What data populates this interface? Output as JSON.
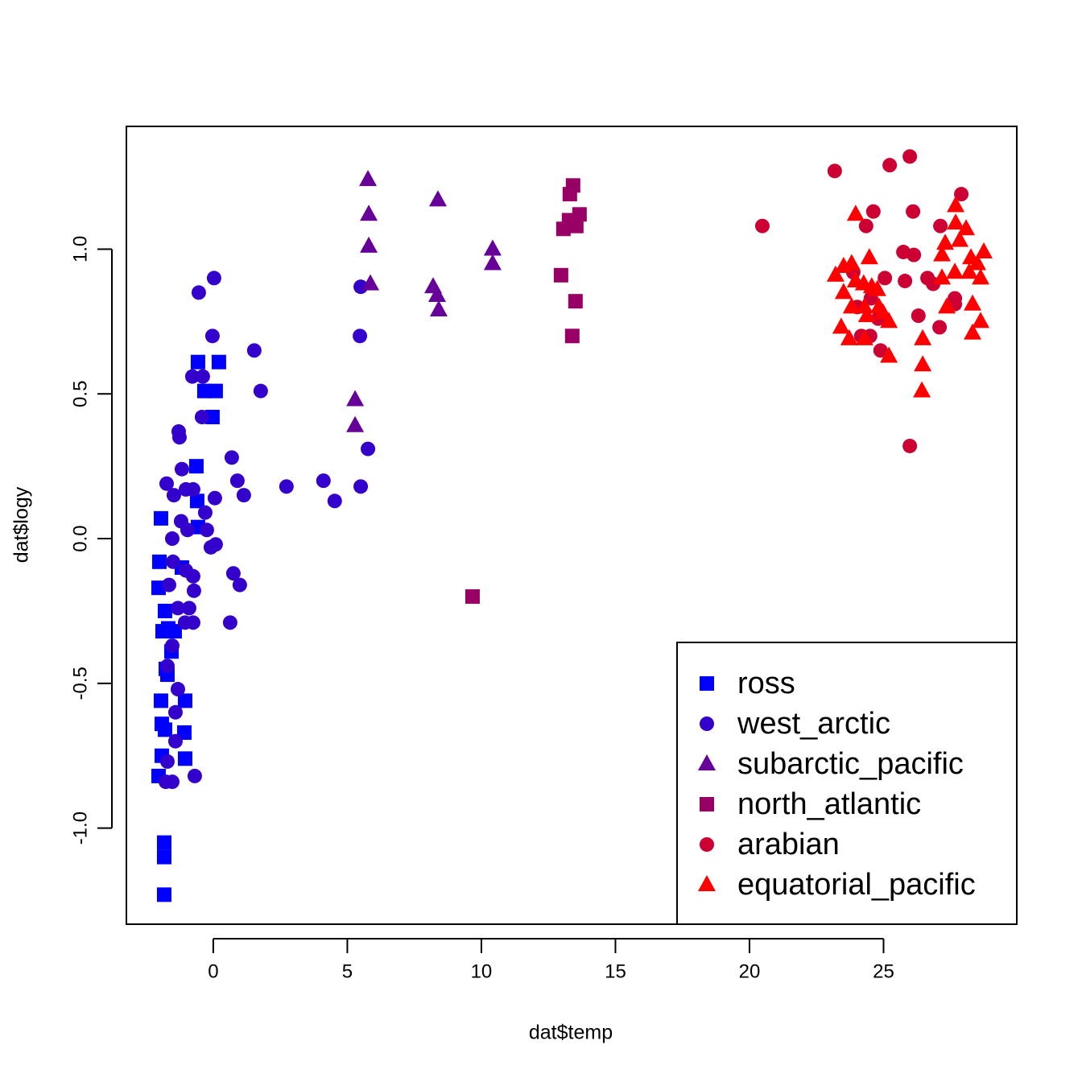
{
  "chart_data": {
    "type": "scatter",
    "x_label": "dat$temp",
    "y_label": "dat$logy",
    "xlim": [
      -3.24,
      29.97
    ],
    "ylim": [
      -1.332,
      1.424
    ],
    "xticks": [
      0,
      5,
      10,
      15,
      20,
      25
    ],
    "yticks": [
      {
        "value": -1,
        "label": "-1.0"
      },
      {
        "value": -0.5,
        "label": "-0.5"
      },
      {
        "value": 0,
        "label": "0.0"
      },
      {
        "value": 0.5,
        "label": "0.5"
      },
      {
        "value": 1,
        "label": "1.0"
      }
    ],
    "legend_position": "bottomright",
    "series": [
      {
        "name": "ross",
        "color": "#0000ff",
        "shape": "square",
        "x": [
          -1.95,
          -2.01,
          -2.04,
          -1.8,
          -1.89,
          -1.68,
          -1.44,
          -1.56,
          -1.77,
          -1.71,
          -1.95,
          -1.92,
          -1.8,
          -1.05,
          -1.08,
          -1.92,
          -1.05,
          -2.04,
          -1.83,
          -1.83,
          -1.83,
          -0.57,
          -0.33,
          0.09,
          0.21,
          -0.03,
          -0.63,
          -0.6,
          -0.57,
          -1.17
        ],
        "values": [
          0.07,
          -0.08,
          -0.17,
          -0.25,
          -0.32,
          -0.31,
          -0.32,
          -0.39,
          -0.45,
          -0.47,
          -0.56,
          -0.64,
          -0.66,
          -0.56,
          -0.67,
          -0.75,
          -0.76,
          -0.82,
          -1.05,
          -1.1,
          -1.23,
          0.61,
          0.51,
          0.51,
          0.61,
          0.42,
          0.25,
          0.13,
          0.04,
          -0.1
        ]
      },
      {
        "name": "west_arctic",
        "color": "#3300cc",
        "shape": "circle",
        "x": [
          -0.54,
          0.03,
          -0.03,
          1.53,
          1.77,
          -0.78,
          -0.39,
          -0.42,
          -1.29,
          -1.26,
          -1.17,
          -1.74,
          -1.47,
          -1.02,
          -0.75,
          -0.3,
          0.06,
          0.69,
          0.9,
          1.14,
          2.73,
          4.11,
          4.53,
          5.5,
          5.47,
          5.77,
          5.5,
          -1.2,
          -0.96,
          -1.53,
          -0.24,
          -0.09,
          0.09,
          0.75,
          0.99,
          -1.5,
          -1.02,
          -0.75,
          -0.72,
          -1.65,
          -1.32,
          -0.9,
          -0.75,
          -1.05,
          0.63,
          -1.53,
          -1.71,
          -1.32,
          -1.41,
          -1.41,
          -1.71,
          -1.53,
          -0.69,
          -1.77
        ],
        "values": [
          0.85,
          0.9,
          0.7,
          0.65,
          0.51,
          0.56,
          0.56,
          0.42,
          0.37,
          0.35,
          0.24,
          0.19,
          0.15,
          0.17,
          0.17,
          0.09,
          0.14,
          0.28,
          0.2,
          0.15,
          0.18,
          0.2,
          0.13,
          0.87,
          0.7,
          0.31,
          0.18,
          0.06,
          0.03,
          0.0,
          0.03,
          -0.03,
          -0.02,
          -0.12,
          -0.16,
          -0.08,
          -0.11,
          -0.13,
          -0.18,
          -0.16,
          -0.24,
          -0.24,
          -0.29,
          -0.29,
          -0.29,
          -0.37,
          -0.44,
          -0.52,
          -0.6,
          -0.7,
          -0.77,
          -0.84,
          -0.82,
          -0.84
        ]
      },
      {
        "name": "subarctic_pacific",
        "color": "#660099",
        "shape": "triangle",
        "x": [
          5.77,
          5.8,
          5.8,
          5.86,
          8.38,
          10.42,
          10.42,
          8.2,
          8.35,
          8.41,
          5.29,
          5.29
        ],
        "values": [
          1.24,
          1.12,
          1.01,
          0.88,
          1.17,
          1.0,
          0.95,
          0.87,
          0.84,
          0.79,
          0.48,
          0.39
        ]
      },
      {
        "name": "north_atlantic",
        "color": "#990066",
        "shape": "square",
        "x": [
          13.42,
          13.3,
          13.66,
          13.27,
          13.54,
          13.06,
          12.97,
          13.51,
          13.39,
          9.67
        ],
        "values": [
          1.22,
          1.19,
          1.12,
          1.1,
          1.08,
          1.07,
          0.91,
          0.82,
          0.7,
          -0.2
        ]
      },
      {
        "name": "arabian",
        "color": "#cc0033",
        "shape": "circle",
        "x": [
          23.18,
          25.23,
          25.98,
          20.48,
          27.9,
          26.1,
          24.62,
          24.35,
          27.12,
          25.74,
          26.13,
          23.87,
          25.05,
          25.8,
          26.64,
          26.85,
          24.53,
          27.66,
          27.66,
          24.02,
          24.8,
          26.3,
          27.09,
          24.17,
          24.5,
          24.89,
          25.98
        ],
        "values": [
          1.27,
          1.29,
          1.32,
          1.08,
          1.19,
          1.13,
          1.13,
          1.08,
          1.08,
          0.99,
          0.98,
          0.92,
          0.9,
          0.89,
          0.9,
          0.88,
          0.83,
          0.83,
          0.81,
          0.8,
          0.76,
          0.77,
          0.73,
          0.7,
          0.7,
          0.65,
          0.32
        ]
      },
      {
        "name": "equatorial_pacific",
        "color": "#ff0000",
        "shape": "triangle",
        "x": [
          23.96,
          27.69,
          27.69,
          28.08,
          27.3,
          27.84,
          28.74,
          28.26,
          27.18,
          24.47,
          23.81,
          23.51,
          23.21,
          28.5,
          28.2,
          27.66,
          28.62,
          23.96,
          23.51,
          24.26,
          24.56,
          24.77,
          23.81,
          24.29,
          28.32,
          24.83,
          24.98,
          25.2,
          24.38,
          23.42,
          23.72,
          24.29,
          25.2,
          26.46,
          28.62,
          28.32,
          26.46,
          26.43,
          27.36,
          27.18
        ],
        "values": [
          1.12,
          1.15,
          1.09,
          1.07,
          1.02,
          1.03,
          0.99,
          0.97,
          0.98,
          0.97,
          0.95,
          0.94,
          0.91,
          0.95,
          0.92,
          0.92,
          0.9,
          0.89,
          0.85,
          0.88,
          0.87,
          0.86,
          0.8,
          0.8,
          0.81,
          0.8,
          0.78,
          0.75,
          0.77,
          0.73,
          0.69,
          0.69,
          0.63,
          0.69,
          0.75,
          0.71,
          0.6,
          0.51,
          0.8,
          0.9
        ]
      }
    ]
  }
}
